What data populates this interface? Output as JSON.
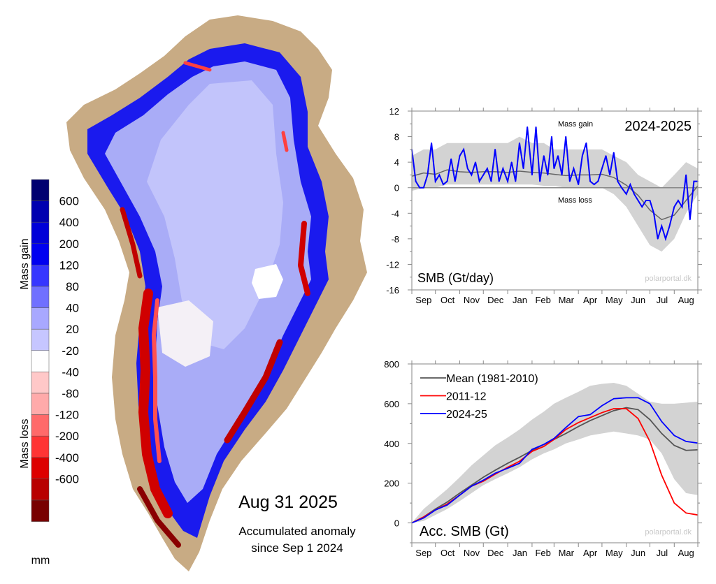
{
  "map": {
    "date_label": "Aug 31 2025",
    "caption_line1": "Accumulated anomaly",
    "caption_line2": "since Sep 1 2024",
    "colors": {
      "land": "#c8ab84",
      "ocean": "#ffffff"
    }
  },
  "colorbar": {
    "label_gain": "Mass gain",
    "label_loss": "Mass loss",
    "unit": "mm",
    "tick_labels": [
      "600",
      "400",
      "200",
      "120",
      "80",
      "40",
      "20",
      "-20",
      "-40",
      "-80",
      "-120",
      "-200",
      "-400",
      "-600"
    ],
    "colors": [
      "#000070",
      "#0000b0",
      "#0000d8",
      "#0000f0",
      "#3636ff",
      "#7070ff",
      "#a8a8ff",
      "#c6c6ff",
      "#ffffff",
      "#ffc8c8",
      "#ffaaaa",
      "#ff6a6a",
      "#ff3434",
      "#dd0000",
      "#b80000",
      "#780000"
    ]
  },
  "chart_data": [
    {
      "type": "line",
      "title": "SMB (Gt/day)",
      "season_label": "2024-2025",
      "annotation_gain": "Mass gain",
      "annotation_loss": "Mass loss",
      "watermark": "polarportal.dk",
      "xlim": [
        "2024-09-01",
        "2025-08-31"
      ],
      "ylim": [
        -16,
        12
      ],
      "yticks": [
        12,
        8,
        4,
        0,
        -4,
        -8,
        -12,
        -16
      ],
      "xtick_labels": [
        "Sep",
        "Oct",
        "Nov",
        "Dec",
        "Jan",
        "Feb",
        "Mar",
        "Apr",
        "May",
        "Jun",
        "Jul",
        "Aug"
      ],
      "colors": {
        "current": "#0000ff",
        "mean": "#666666",
        "band": "#d3d3d3"
      },
      "current": {
        "x": [
          "2024-09-01",
          "2024-09-06",
          "2024-09-11",
          "2024-09-16",
          "2024-09-21",
          "2024-09-26",
          "2024-10-01",
          "2024-10-06",
          "2024-10-11",
          "2024-10-16",
          "2024-10-21",
          "2024-10-26",
          "2024-11-01",
          "2024-11-06",
          "2024-11-11",
          "2024-11-16",
          "2024-11-21",
          "2024-11-26",
          "2024-12-01",
          "2024-12-06",
          "2024-12-11",
          "2024-12-16",
          "2024-12-21",
          "2024-12-26",
          "2025-01-01",
          "2025-01-06",
          "2025-01-11",
          "2025-01-16",
          "2025-01-21",
          "2025-01-26",
          "2025-02-01",
          "2025-02-06",
          "2025-02-11",
          "2025-02-16",
          "2025-02-21",
          "2025-02-26",
          "2025-03-01",
          "2025-03-06",
          "2025-03-11",
          "2025-03-16",
          "2025-03-21",
          "2025-03-26",
          "2025-04-01",
          "2025-04-06",
          "2025-04-11",
          "2025-04-16",
          "2025-04-21",
          "2025-04-26",
          "2025-05-01",
          "2025-05-06",
          "2025-05-11",
          "2025-05-16",
          "2025-05-21",
          "2025-05-26",
          "2025-06-01",
          "2025-06-06",
          "2025-06-11",
          "2025-06-16",
          "2025-06-21",
          "2025-06-26",
          "2025-07-01",
          "2025-07-06",
          "2025-07-11",
          "2025-07-16",
          "2025-07-21",
          "2025-07-26",
          "2025-08-01",
          "2025-08-06",
          "2025-08-11",
          "2025-08-16",
          "2025-08-21",
          "2025-08-26",
          "2025-08-31"
        ],
        "y": [
          6,
          1,
          0,
          0,
          2,
          7,
          1,
          2,
          0.5,
          1,
          4.5,
          1,
          5,
          6,
          3,
          2,
          4,
          1,
          2,
          3,
          1,
          6,
          1,
          3,
          1,
          4,
          1,
          7,
          3,
          9.5,
          2,
          9.5,
          1,
          5,
          2,
          8,
          3,
          5,
          2,
          8,
          1,
          3,
          0.5,
          5,
          7,
          1,
          0.5,
          1,
          3,
          5,
          2,
          5.5,
          1,
          0,
          -1,
          0.5,
          -1,
          -2,
          -3,
          -2,
          -2,
          -4,
          -8,
          -6,
          -8,
          -6,
          -3,
          -2,
          -3,
          2,
          -5,
          1,
          1
        ]
      },
      "mean": {
        "x": [
          "2024-09-01",
          "2024-09-16",
          "2024-10-01",
          "2024-10-16",
          "2024-11-01",
          "2024-11-16",
          "2024-12-01",
          "2024-12-16",
          "2025-01-01",
          "2025-01-16",
          "2025-02-01",
          "2025-02-16",
          "2025-03-01",
          "2025-03-16",
          "2025-04-01",
          "2025-04-16",
          "2025-05-01",
          "2025-05-16",
          "2025-06-01",
          "2025-06-16",
          "2025-07-01",
          "2025-07-16",
          "2025-08-01",
          "2025-08-16",
          "2025-08-31"
        ],
        "y": [
          1.8,
          2.3,
          2.1,
          2.8,
          2.5,
          2.4,
          2.5,
          2.5,
          2.4,
          2.6,
          2.4,
          2.3,
          2.1,
          1.9,
          2,
          2,
          2.1,
          1.6,
          0.4,
          -1.2,
          -3.5,
          -5,
          -4.3,
          -2,
          0.3
        ]
      },
      "band": {
        "x": [
          "2024-09-01",
          "2024-09-16",
          "2024-10-01",
          "2024-10-16",
          "2024-11-01",
          "2024-11-16",
          "2024-12-01",
          "2024-12-16",
          "2025-01-01",
          "2025-01-16",
          "2025-02-01",
          "2025-02-16",
          "2025-03-01",
          "2025-03-16",
          "2025-04-01",
          "2025-04-16",
          "2025-05-01",
          "2025-05-16",
          "2025-06-01",
          "2025-06-16",
          "2025-07-01",
          "2025-07-16",
          "2025-08-01",
          "2025-08-16",
          "2025-08-31"
        ],
        "upper": [
          5,
          6,
          6,
          7,
          7,
          7,
          7,
          7,
          7,
          8,
          7,
          7,
          6,
          6,
          6,
          6,
          6,
          5,
          4,
          2,
          1,
          0,
          2,
          4,
          3
        ],
        "lower": [
          -0.5,
          0,
          0,
          0.5,
          0.5,
          0.5,
          0.5,
          0.5,
          0.5,
          0.5,
          0.5,
          0.3,
          0.3,
          0,
          0,
          0,
          0,
          -1,
          -3,
          -6,
          -9,
          -10,
          -8,
          -4,
          -1
        ]
      }
    },
    {
      "type": "line",
      "title": "Acc. SMB (Gt)",
      "watermark": "polarportal.dk",
      "xlim": [
        "2024-09-01",
        "2025-08-31"
      ],
      "ylim": [
        -100,
        800
      ],
      "yticks": [
        800,
        600,
        400,
        200,
        0
      ],
      "xtick_labels": [
        "Sep",
        "Oct",
        "Nov",
        "Dec",
        "Jan",
        "Feb",
        "Mar",
        "Apr",
        "May",
        "Jun",
        "Jul",
        "Aug"
      ],
      "x": [
        "2024-09-01",
        "2024-09-16",
        "2024-10-01",
        "2024-10-16",
        "2024-11-01",
        "2024-11-16",
        "2024-12-01",
        "2024-12-16",
        "2025-01-01",
        "2025-01-16",
        "2025-02-01",
        "2025-02-16",
        "2025-03-01",
        "2025-03-16",
        "2025-04-01",
        "2025-04-16",
        "2025-05-01",
        "2025-05-16",
        "2025-06-01",
        "2025-06-16",
        "2025-07-01",
        "2025-07-16",
        "2025-08-01",
        "2025-08-16",
        "2025-08-31"
      ],
      "series": [
        {
          "name": "Mean (1981-2010)",
          "color": "#555555",
          "values": [
            0,
            30,
            70,
            105,
            150,
            190,
            230,
            265,
            300,
            330,
            365,
            395,
            420,
            450,
            485,
            515,
            540,
            565,
            580,
            570,
            520,
            450,
            390,
            365,
            368
          ]
        },
        {
          "name": "2011-12",
          "color": "#ff0000",
          "values": [
            0,
            30,
            65,
            95,
            140,
            185,
            210,
            245,
            280,
            310,
            360,
            385,
            420,
            470,
            505,
            530,
            555,
            575,
            575,
            525,
            410,
            240,
            100,
            50,
            40
          ]
        },
        {
          "name": "2024-25",
          "color": "#0000ff",
          "values": [
            0,
            25,
            65,
            90,
            140,
            185,
            215,
            250,
            275,
            300,
            370,
            395,
            425,
            480,
            535,
            545,
            590,
            625,
            630,
            630,
            600,
            510,
            440,
            410,
            402
          ]
        }
      ],
      "band": {
        "color": "#d3d3d3",
        "upper": [
          0,
          70,
          120,
          170,
          230,
          290,
          340,
          390,
          430,
          470,
          520,
          560,
          600,
          630,
          660,
          690,
          700,
          705,
          690,
          650,
          610,
          600,
          600,
          605,
          610
        ],
        "lower": [
          0,
          10,
          40,
          70,
          110,
          150,
          190,
          220,
          250,
          280,
          320,
          350,
          370,
          400,
          420,
          440,
          450,
          460,
          450,
          440,
          420,
          350,
          220,
          150,
          140
        ]
      }
    }
  ]
}
